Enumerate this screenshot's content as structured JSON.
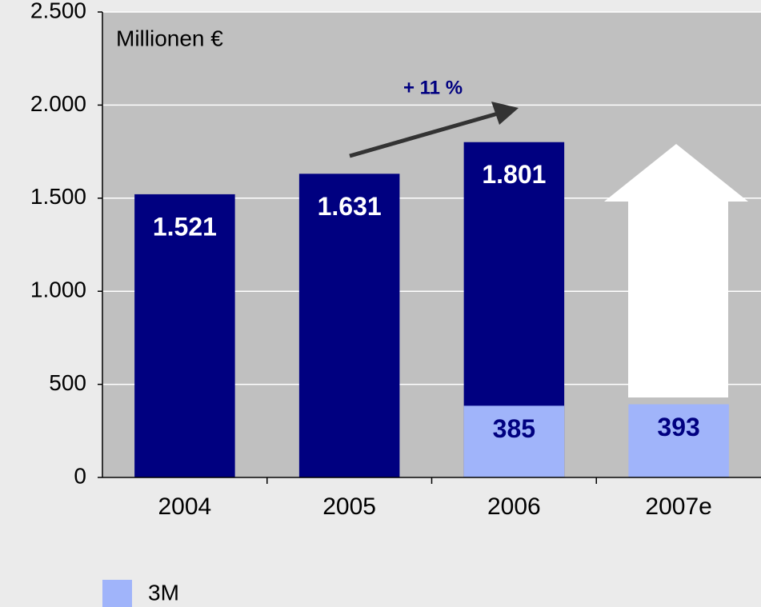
{
  "chart_data": {
    "type": "bar",
    "annotations": [
      "Millionen €",
      "+ 11 %"
    ],
    "categories": [
      "2004",
      "2005",
      "2006",
      "2007e"
    ],
    "series": [
      {
        "color": "#000080",
        "values": [
          1521,
          1631,
          1801,
          null
        ],
        "value_labels": [
          "1.521",
          "1.631",
          "1.801",
          null
        ]
      },
      {
        "name": "3M",
        "color": "#a0b4fa",
        "values": [
          null,
          null,
          385,
          393
        ]
      }
    ],
    "ylim": [
      0,
      2500
    ],
    "yticks": [
      0,
      500,
      {
        "value": 1000,
        "label": "1.000"
      },
      {
        "value": 1500,
        "label": "1.500"
      },
      {
        "value": 2000,
        "label": "2.000"
      },
      {
        "value": 2500,
        "label": "2.500"
      }
    ],
    "grid": true,
    "legend": "bottom-left"
  }
}
